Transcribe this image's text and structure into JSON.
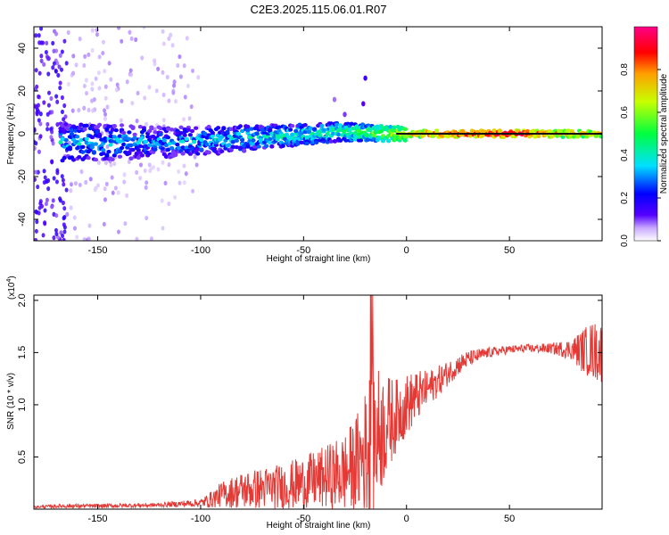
{
  "title": "C2E3.2025.115.06.01.R07",
  "colors": {
    "snr_line": "#e53935",
    "center_line": "#111111",
    "axis": "#000000"
  },
  "chart_data": [
    {
      "type": "heatmap",
      "name": "spectrogram",
      "xlabel": "Height of straight line (km)",
      "ylabel": "Frequency (Hz)",
      "xlim": [
        -181,
        95
      ],
      "ylim": [
        -50,
        50
      ],
      "xticks": [
        -150,
        -100,
        -50,
        0,
        50
      ],
      "xtick_labels": [
        "-150",
        "-100",
        "-50",
        "0",
        "50"
      ],
      "yticks": [
        -40,
        -20,
        0,
        20,
        40
      ],
      "ytick_labels": [
        "-40",
        "-20",
        "0",
        "20",
        "40"
      ],
      "colorbar": {
        "label": "Normalized spectral amplitude",
        "range": [
          0,
          1
        ],
        "ticks": [
          0.0,
          0.2,
          0.4,
          0.6,
          0.8
        ],
        "tick_labels": [
          "0.0",
          "0.2",
          "0.4",
          "0.6",
          "0.8"
        ],
        "colormap": [
          "#ffffff",
          "#5500ff",
          "#0000ff",
          "#00ffff",
          "#00ff00",
          "#ffff00",
          "#ff0000",
          "#ff00aa"
        ]
      },
      "trend": {
        "description_points": [
          {
            "x": -165,
            "y": -4,
            "amp": 0.35
          },
          {
            "x": -120,
            "y": -4,
            "amp": 0.3
          },
          {
            "x": -90,
            "y": -3,
            "amp": 0.35
          },
          {
            "x": -60,
            "y": -1,
            "amp": 0.4
          },
          {
            "x": -30,
            "y": 1,
            "amp": 0.45
          },
          {
            "x": -10,
            "y": 0,
            "amp": 0.6
          },
          {
            "x": 10,
            "y": 0,
            "amp": 0.85
          },
          {
            "x": 50,
            "y": 0,
            "amp": 0.95
          },
          {
            "x": 95,
            "y": 0,
            "amp": 0.7
          }
        ]
      }
    },
    {
      "type": "line",
      "name": "snr",
      "xlabel": "Height of straight line (km)",
      "ylabel": "SNR (10 * v/v)",
      "y_multiplier": "(x10",
      "y_multiplier_exp": "4",
      "y_multiplier_close": ")",
      "xlim": [
        -181,
        95
      ],
      "ylim": [
        0,
        2.05
      ],
      "xticks": [
        -150,
        -100,
        -50,
        0,
        50
      ],
      "xtick_labels": [
        "-150",
        "-100",
        "-50",
        "0",
        "50"
      ],
      "yticks": [
        0.5,
        1.0,
        1.5,
        2.0
      ],
      "ytick_labels": [
        "0.5",
        "1.0",
        "1.5",
        "2.0"
      ],
      "envelope": {
        "x": [
          -181,
          -168,
          -150,
          -120,
          -100,
          -95,
          -90,
          -80,
          -70,
          -60,
          -50,
          -40,
          -30,
          -25,
          -20,
          -17,
          -15,
          -10,
          -5,
          0,
          5,
          10,
          15,
          20,
          25,
          30,
          40,
          50,
          60,
          70,
          80,
          85,
          90,
          95
        ],
        "base": [
          0.02,
          0.03,
          0.03,
          0.04,
          0.06,
          0.09,
          0.14,
          0.18,
          0.2,
          0.22,
          0.25,
          0.3,
          0.35,
          0.42,
          0.55,
          0.6,
          0.7,
          0.8,
          0.9,
          1.0,
          1.08,
          1.15,
          1.22,
          1.3,
          1.38,
          1.44,
          1.5,
          1.53,
          1.54,
          1.54,
          1.53,
          1.52,
          1.52,
          1.5
        ],
        "amp": [
          0.01,
          0.02,
          0.02,
          0.02,
          0.04,
          0.08,
          0.12,
          0.18,
          0.2,
          0.22,
          0.26,
          0.3,
          0.38,
          0.45,
          0.6,
          0.9,
          0.7,
          0.5,
          0.35,
          0.3,
          0.25,
          0.18,
          0.15,
          0.12,
          0.1,
          0.08,
          0.05,
          0.04,
          0.04,
          0.05,
          0.1,
          0.2,
          0.28,
          0.3
        ]
      }
    }
  ]
}
